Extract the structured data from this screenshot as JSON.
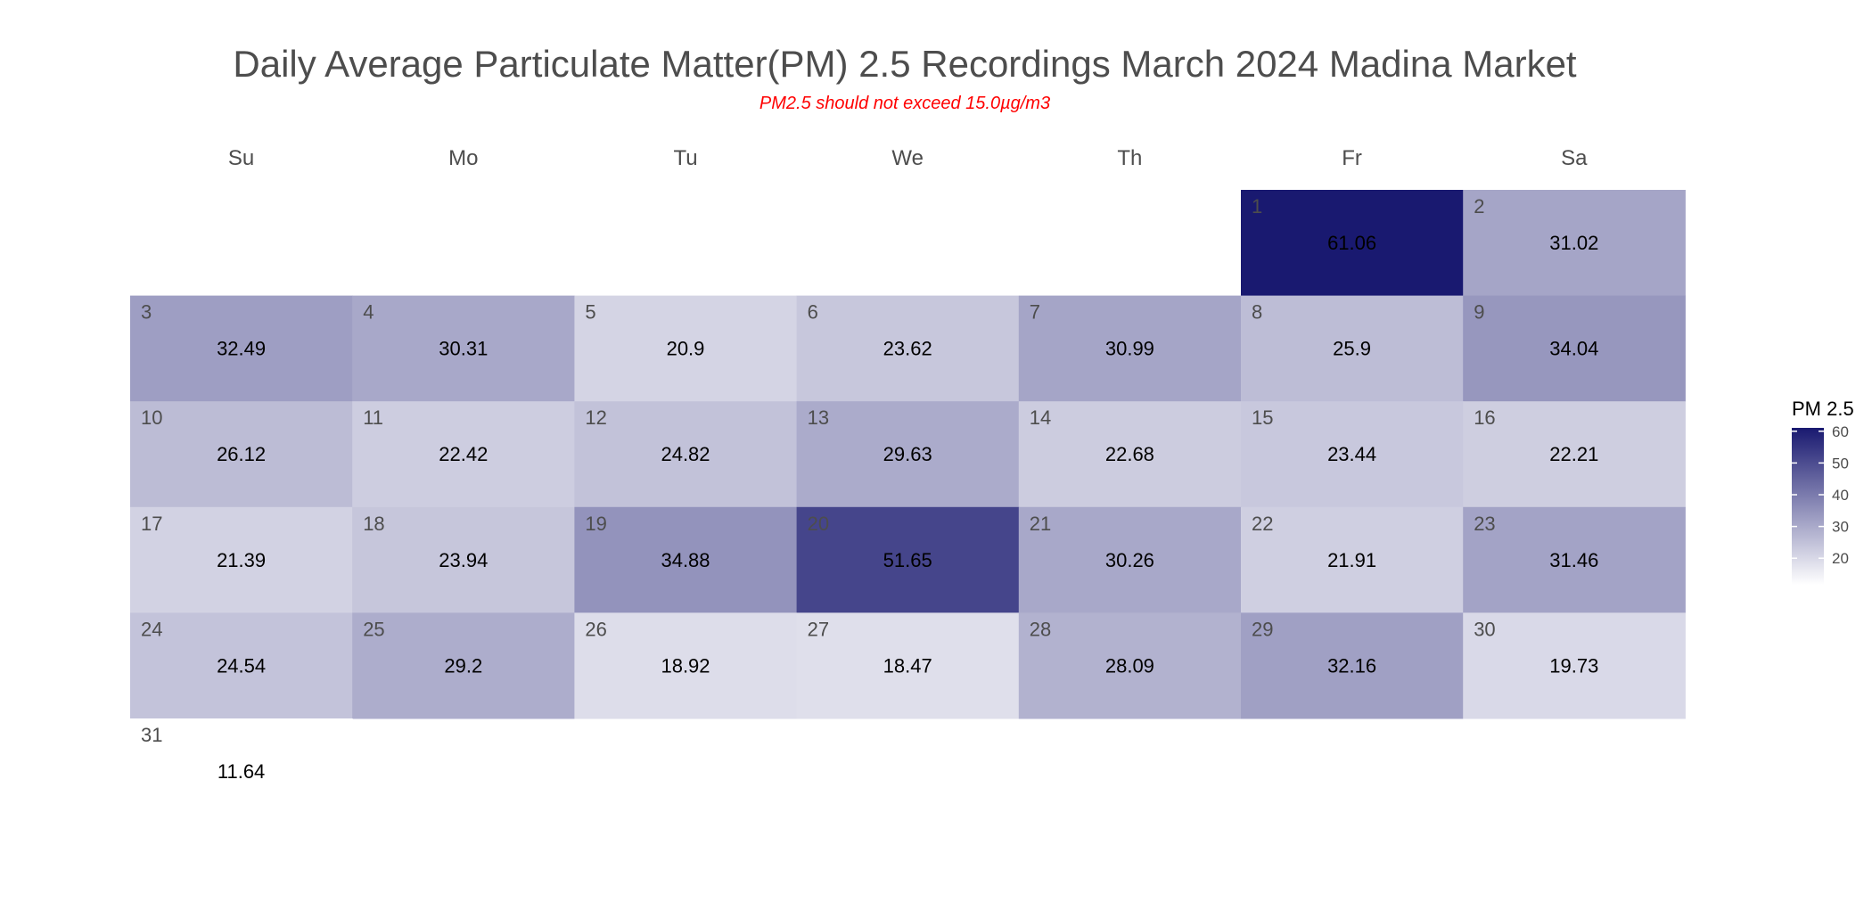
{
  "chart_data": {
    "type": "heatmap",
    "title": "Daily Average Particulate Matter(PM) 2.5 Recordings March 2024 Madina Market",
    "subtitle": "PM2.5 should not exceed 15.0µg/m3",
    "weekdays": [
      "Su",
      "Mo",
      "Tu",
      "We",
      "Th",
      "Fr",
      "Sa"
    ],
    "month": "March 2024",
    "first_weekday_index": 5,
    "days": [
      {
        "day": 1,
        "value": 61.06
      },
      {
        "day": 2,
        "value": 31.02
      },
      {
        "day": 3,
        "value": 32.49
      },
      {
        "day": 4,
        "value": 30.31
      },
      {
        "day": 5,
        "value": 20.9
      },
      {
        "day": 6,
        "value": 23.62
      },
      {
        "day": 7,
        "value": 30.99
      },
      {
        "day": 8,
        "value": 25.9
      },
      {
        "day": 9,
        "value": 34.04
      },
      {
        "day": 10,
        "value": 26.12
      },
      {
        "day": 11,
        "value": 22.42
      },
      {
        "day": 12,
        "value": 24.82
      },
      {
        "day": 13,
        "value": 29.63
      },
      {
        "day": 14,
        "value": 22.68
      },
      {
        "day": 15,
        "value": 23.44
      },
      {
        "day": 16,
        "value": 22.21
      },
      {
        "day": 17,
        "value": 21.39
      },
      {
        "day": 18,
        "value": 23.94
      },
      {
        "day": 19,
        "value": 34.88
      },
      {
        "day": 20,
        "value": 51.65
      },
      {
        "day": 21,
        "value": 30.26
      },
      {
        "day": 22,
        "value": 21.91
      },
      {
        "day": 23,
        "value": 31.46
      },
      {
        "day": 24,
        "value": 24.54
      },
      {
        "day": 25,
        "value": 29.2
      },
      {
        "day": 26,
        "value": 18.92
      },
      {
        "day": 27,
        "value": 18.47
      },
      {
        "day": 28,
        "value": 28.09
      },
      {
        "day": 29,
        "value": 32.16
      },
      {
        "day": 30,
        "value": 19.73
      },
      {
        "day": 31,
        "value": 11.64
      }
    ],
    "legend": {
      "title": "PM 2.5",
      "ticks": [
        20,
        30,
        40,
        50,
        60
      ],
      "range": [
        11.64,
        61.06
      ],
      "placement": "right"
    },
    "colors": {
      "low": "#ffffff",
      "high": "#191970"
    }
  }
}
